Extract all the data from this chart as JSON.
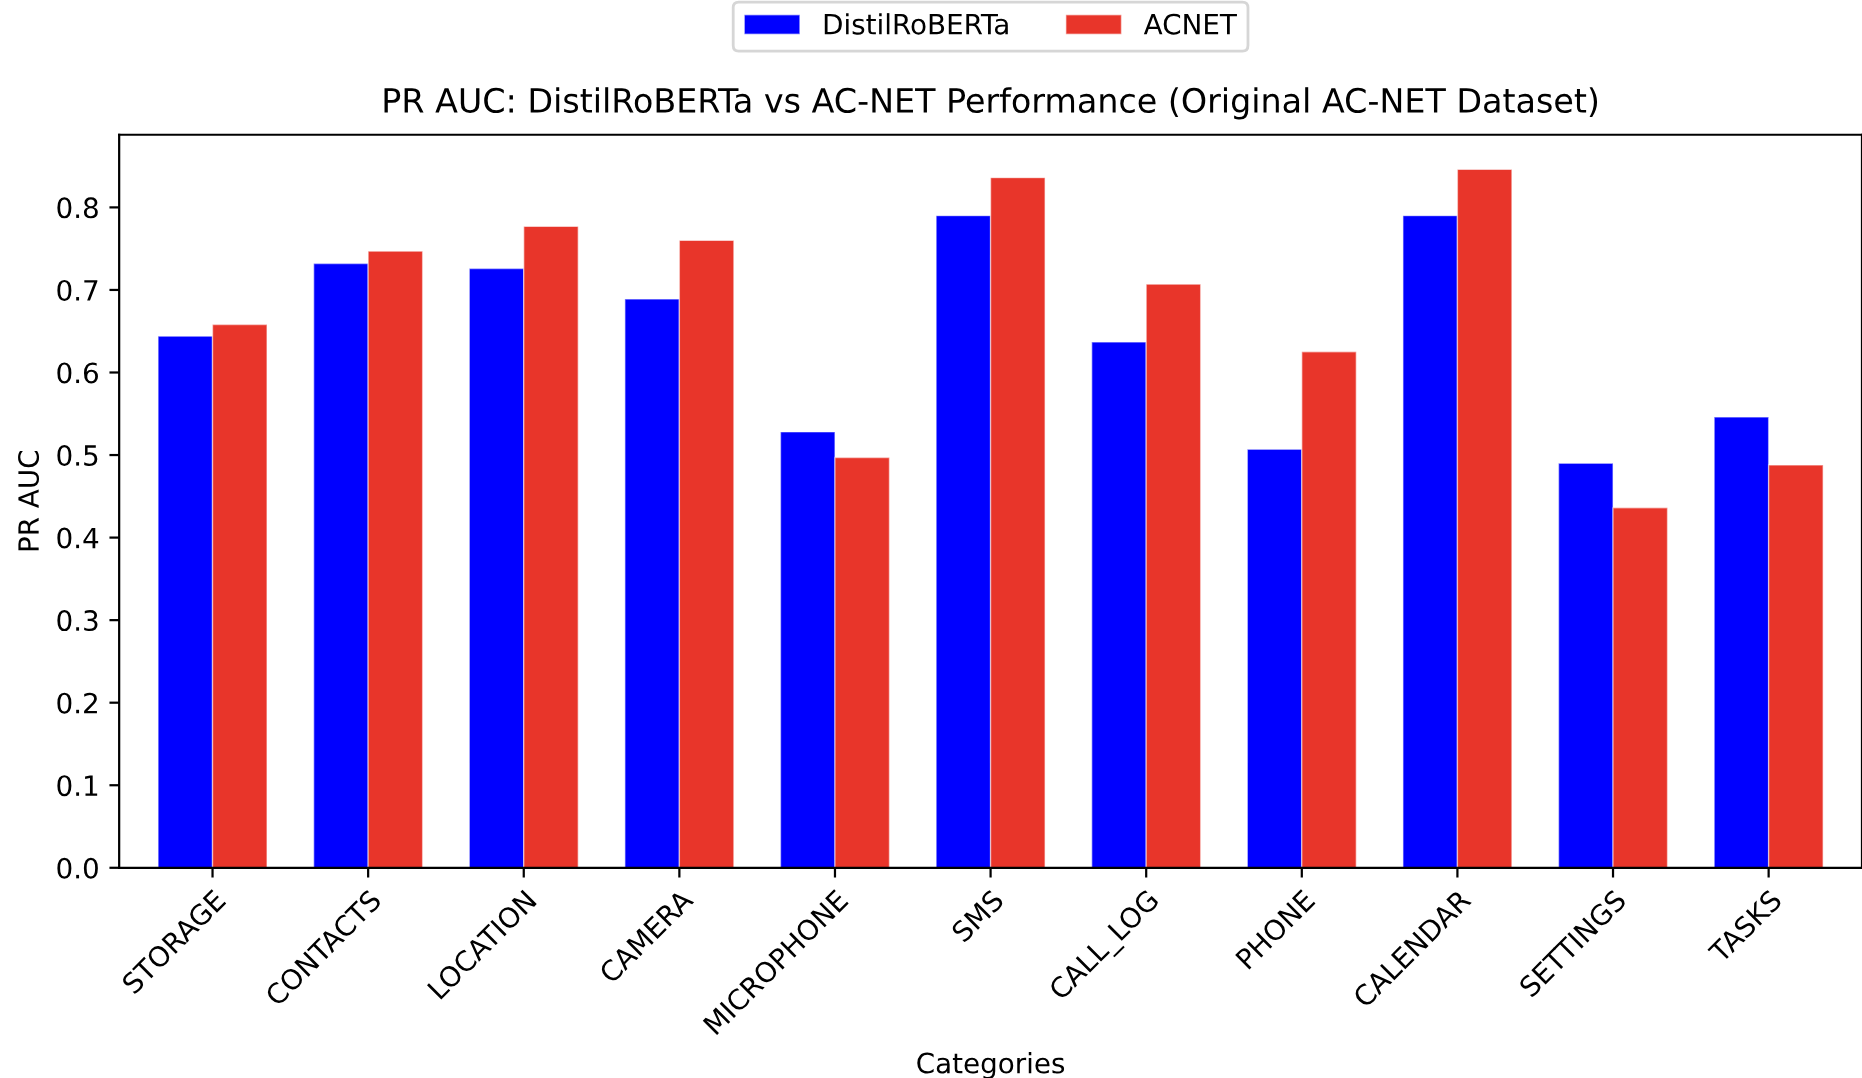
{
  "chart_data": {
    "type": "bar",
    "title": "PR AUC: DistilRoBERTa vs AC-NET Performance (Original AC-NET Dataset)",
    "xlabel": "Categories",
    "ylabel": "PR AUC",
    "categories": [
      "STORAGE",
      "CONTACTS",
      "LOCATION",
      "CAMERA",
      "MICROPHONE",
      "SMS",
      "CALL_LOG",
      "PHONE",
      "CALENDAR",
      "SETTINGS",
      "TASKS"
    ],
    "series": [
      {
        "name": "DistilRoBERTa",
        "color": "#0000ff",
        "values": [
          0.644,
          0.732,
          0.726,
          0.689,
          0.528,
          0.79,
          0.637,
          0.507,
          0.79,
          0.49,
          0.546
        ]
      },
      {
        "name": "ACNET",
        "color": "#e8352a",
        "values": [
          0.658,
          0.747,
          0.777,
          0.76,
          0.497,
          0.836,
          0.707,
          0.625,
          0.846,
          0.436,
          0.488
        ]
      }
    ],
    "ylim": [
      0,
      0.888
    ],
    "yticks": [
      {
        "value": 0,
        "label": "0.0"
      },
      0.1,
      0.2,
      0.3,
      0.4,
      0.5,
      0.6,
      0.7,
      0.8
    ],
    "grid": false,
    "legend": "top"
  }
}
